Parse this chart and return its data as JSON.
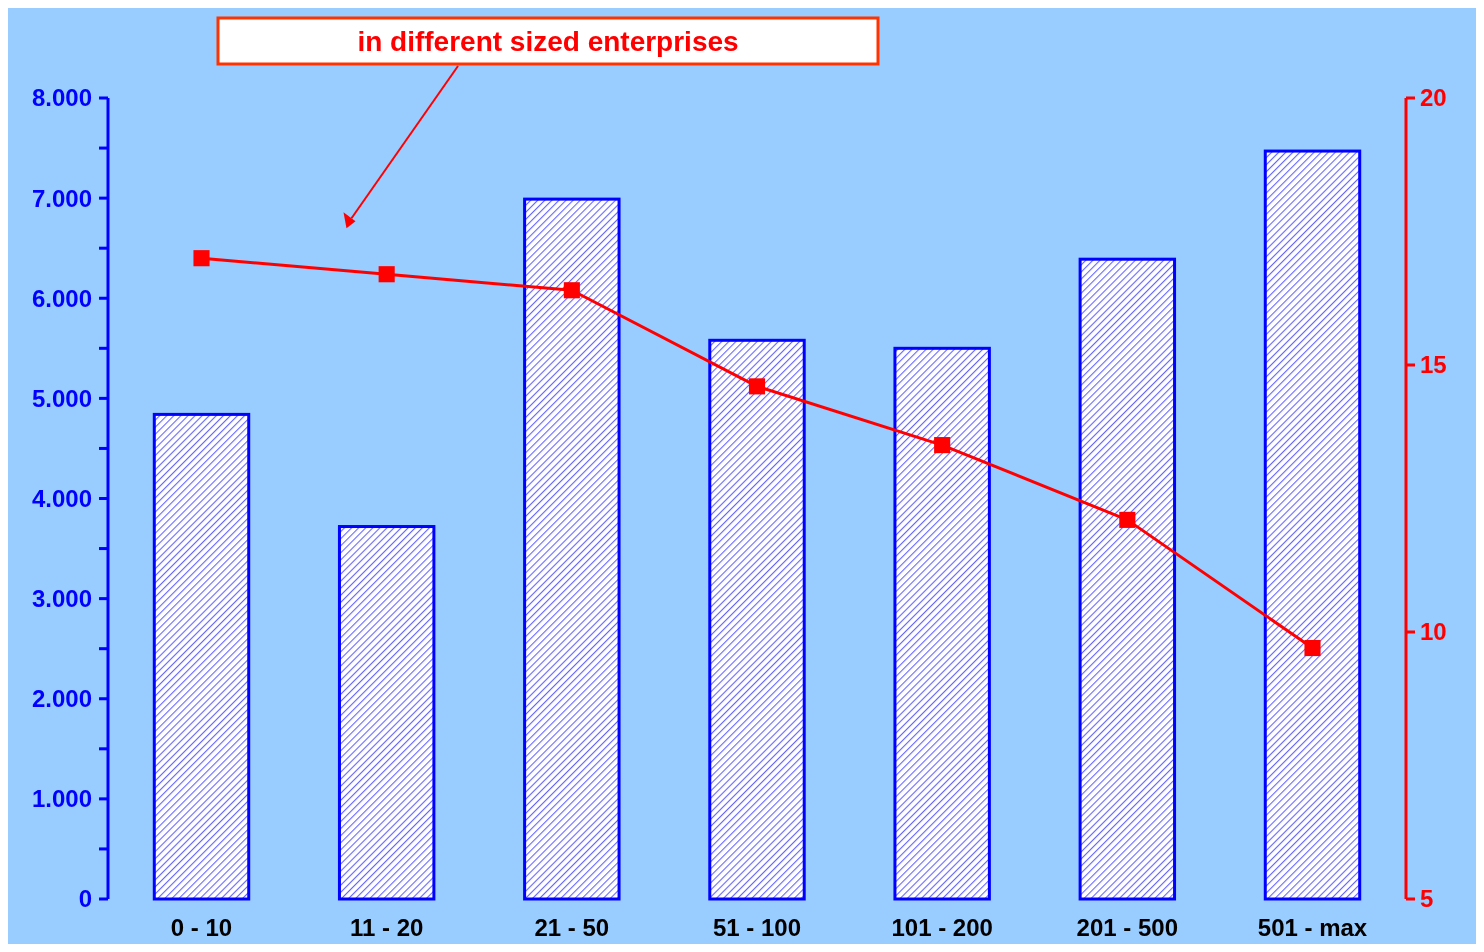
{
  "chart_data": {
    "type": "bar",
    "categories": [
      "0 - 10",
      "11 - 20",
      "21 - 50",
      "51 - 100",
      "101 - 200",
      "201 - 500",
      "501 - max"
    ],
    "series": [
      {
        "color": "#0000ff",
        "values": [
          4840,
          3720,
          6990,
          5580,
          5500,
          6390,
          7470
        ]
      },
      {
        "type": "line",
        "axis": "y2",
        "color": "#ff0000",
        "values": [
          17.0,
          16.7,
          16.4,
          14.6,
          13.5,
          12.1,
          9.7
        ]
      }
    ],
    "ylim": [
      0,
      8000
    ],
    "yticks": [
      {
        "value": 0,
        "label": "0"
      },
      {
        "value": 500,
        "label": null
      },
      {
        "value": 1000,
        "label": "1.000"
      },
      {
        "value": 1500,
        "label": null
      },
      {
        "value": 2000,
        "label": "2.000"
      },
      {
        "value": 2500,
        "label": null
      },
      {
        "value": 3000,
        "label": "3.000"
      },
      {
        "value": 3500,
        "label": null
      },
      {
        "value": 4000,
        "label": "4.000"
      },
      {
        "value": 4500,
        "label": null
      },
      {
        "value": 5000,
        "label": "5.000"
      },
      {
        "value": 5500,
        "label": null
      },
      {
        "value": 6000,
        "label": "6.000"
      },
      {
        "value": 6500,
        "label": null
      },
      {
        "value": 7000,
        "label": "7.000"
      },
      {
        "value": 7500,
        "label": null
      },
      {
        "value": 8000,
        "label": "8.000"
      }
    ],
    "y2lim": [
      5,
      20
    ],
    "y2ticks": [
      5,
      10,
      15,
      20
    ],
    "marker": "square",
    "annotations": [
      "in different sized enterprises"
    ]
  }
}
